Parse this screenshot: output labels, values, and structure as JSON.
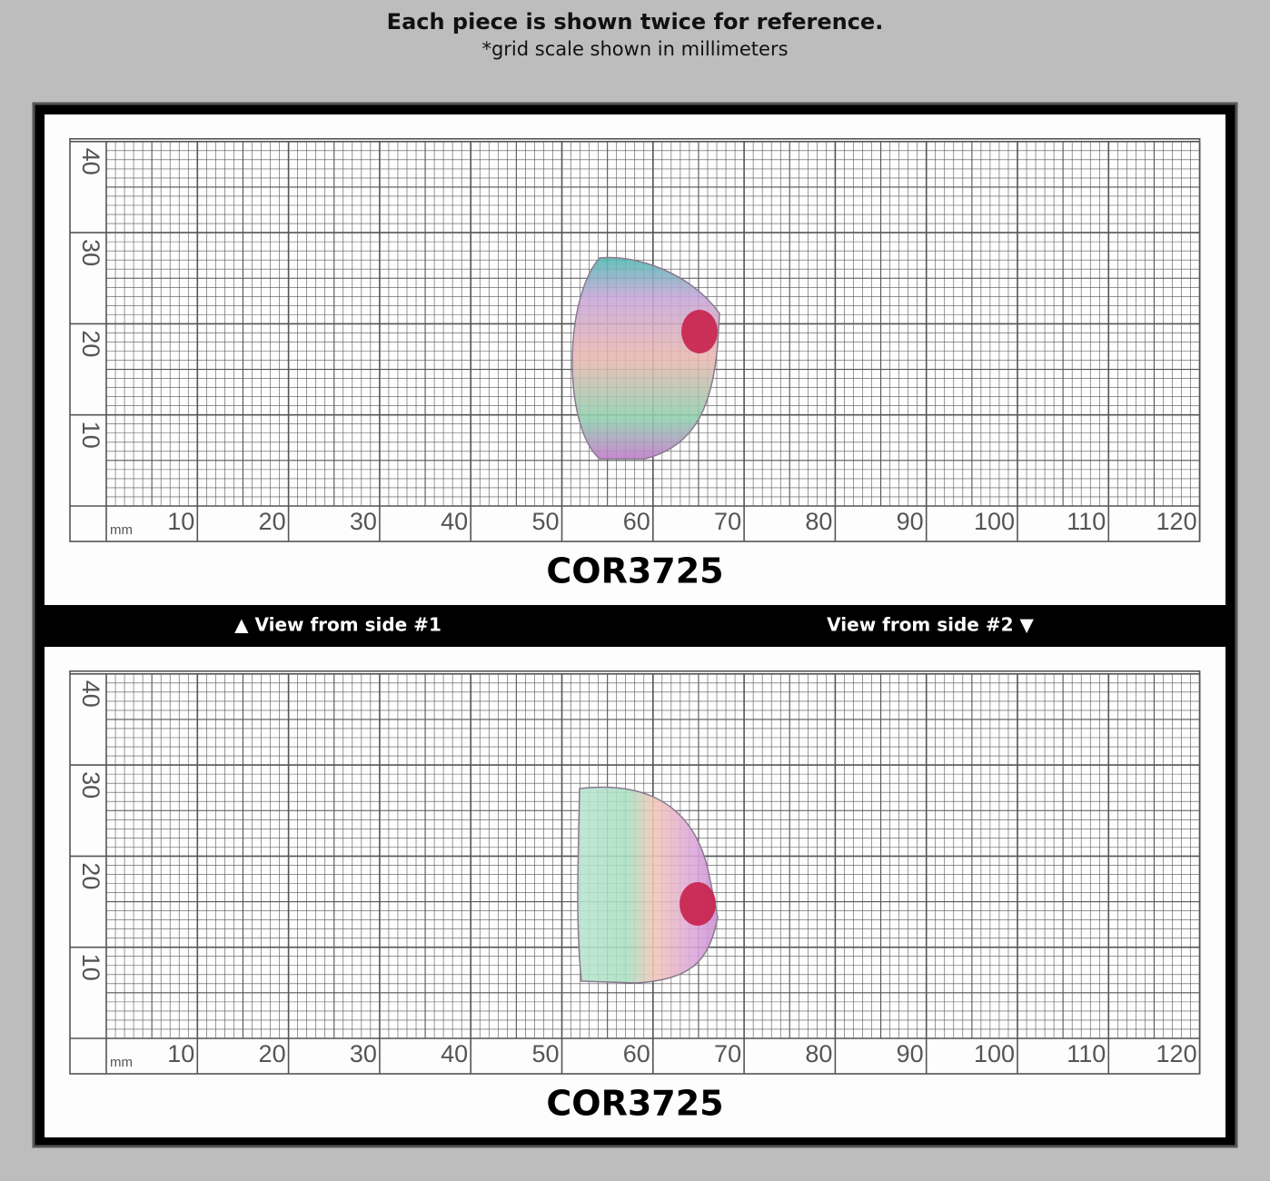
{
  "header": {
    "title": "Each piece is shown twice for reference.",
    "subtitle": "*grid scale shown in millimeters"
  },
  "panels": [
    {
      "label": "COR3725",
      "unit": "mm",
      "x_labels": [
        10,
        20,
        30,
        40,
        50,
        60,
        70,
        80,
        90,
        100,
        110,
        120
      ],
      "y_labels": [
        10,
        20,
        30,
        40
      ]
    },
    {
      "label": "COR3725",
      "unit": "mm",
      "x_labels": [
        10,
        20,
        30,
        40,
        50,
        60,
        70,
        80,
        90,
        100,
        110,
        120
      ],
      "y_labels": [
        10,
        20,
        30,
        40
      ]
    }
  ],
  "captions": [
    "▲ View from side #1",
    "View from side #2 ▼"
  ]
}
